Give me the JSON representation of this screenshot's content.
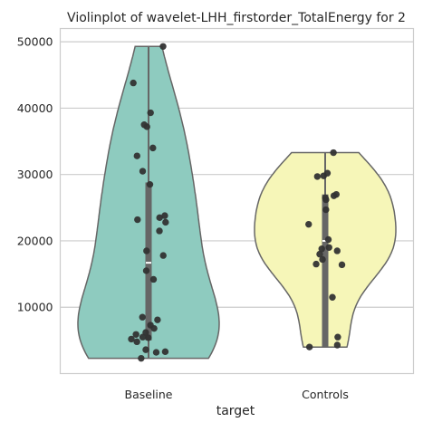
{
  "chart_data": {
    "type": "violin",
    "title": "Violinplot of wavelet-LHH_firstorder_TotalEnergy for 2",
    "xlabel": "target",
    "ylabel": "",
    "categories": [
      "Baseline",
      "Controls"
    ],
    "ylim": [
      0,
      52000
    ],
    "yticks": [
      10000,
      20000,
      30000,
      40000,
      50000
    ],
    "grid": true,
    "inner": "box",
    "cut": 0,
    "colors": {
      "Baseline": "#8ecbbf",
      "Controls": "#f6f6b8"
    },
    "edge_color": "#666666",
    "point_color": "#333333",
    "series": [
      {
        "category": "Baseline",
        "range": [
          2300,
          49300
        ],
        "box": {
          "q1": 5000,
          "median": 16700,
          "q3": 28800
        },
        "points": [
          49300,
          43800,
          39300,
          37500,
          37200,
          34000,
          32800,
          30500,
          28500,
          23800,
          23500,
          23200,
          22800,
          21500,
          18500,
          17800,
          15500,
          14200,
          8500,
          8100,
          7300,
          6800,
          6200,
          5900,
          5500,
          5400,
          5200,
          4800,
          3600,
          3300,
          3200,
          2300
        ]
      },
      {
        "category": "Controls",
        "range": [
          4000,
          33300
        ],
        "box": {
          "q1": 4000,
          "median": 20000,
          "q3": 27000
        },
        "points": [
          33300,
          30200,
          29800,
          29700,
          27000,
          26800,
          26500,
          26200,
          24700,
          22500,
          20200,
          19000,
          18800,
          18500,
          18000,
          17200,
          16500,
          16400,
          11500,
          5500,
          4300,
          4000
        ]
      }
    ]
  }
}
